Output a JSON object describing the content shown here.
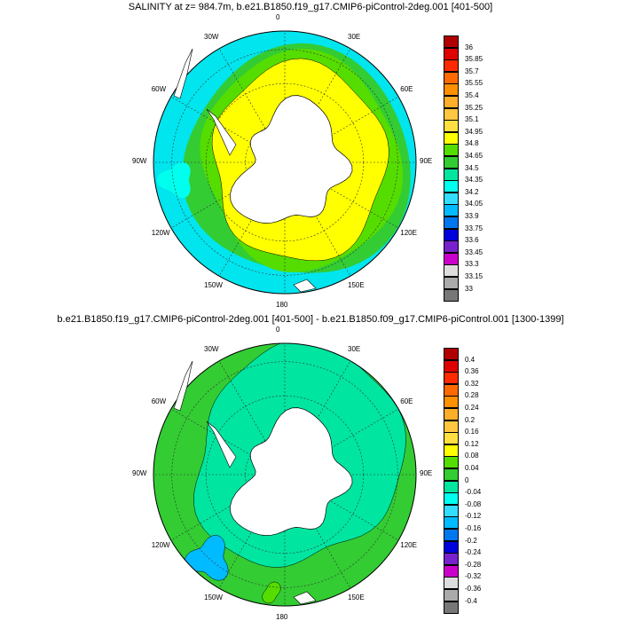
{
  "panels": [
    {
      "title": "SALINITY at z= 984.7m, b.e21.B1850.f19_g17.CMIP6-piControl-2deg.001 [401-500]",
      "lon_labels": [
        "0",
        "30E",
        "60E",
        "90E",
        "120E",
        "150E",
        "180",
        "150W",
        "120W",
        "90W",
        "60W",
        "30W"
      ],
      "colorbar": {
        "labels": [
          "36",
          "35.85",
          "35.7",
          "35.55",
          "35.4",
          "35.25",
          "35.1",
          "34.95",
          "34.8",
          "34.65",
          "34.5",
          "34.35",
          "34.2",
          "34.05",
          "33.9",
          "33.75",
          "33.6",
          "33.45",
          "33.3",
          "33.15",
          "33"
        ],
        "colors": [
          "#b10000",
          "#e00000",
          "#ff2a00",
          "#ff6a00",
          "#ff9000",
          "#ffae2a",
          "#ffc640",
          "#ffe040",
          "#ffff00",
          "#55dd00",
          "#33cc33",
          "#00e5a0",
          "#00ffee",
          "#33ddff",
          "#00bbff",
          "#0077ee",
          "#0000dd",
          "#7722cc",
          "#cc00cc",
          "#dddddd",
          "#aaaaaa",
          "#777777"
        ]
      }
    },
    {
      "title": "b.e21.B1850.f19_g17.CMIP6-piControl-2deg.001 [401-500] - b.e21.B1850.f09_g17.CMIP6-piControl.001 [1300-1399]",
      "lon_labels": [
        "0",
        "30E",
        "60E",
        "90E",
        "120E",
        "150E",
        "180",
        "150W",
        "120W",
        "90W",
        "60W",
        "30W"
      ],
      "colorbar": {
        "labels": [
          "0.4",
          "0.36",
          "0.32",
          "0.28",
          "0.24",
          "0.2",
          "0.16",
          "0.12",
          "0.08",
          "0.04",
          "0",
          "-0.04",
          "-0.08",
          "-0.12",
          "-0.16",
          "-0.2",
          "-0.24",
          "-0.28",
          "-0.32",
          "-0.36",
          "-0.4"
        ],
        "colors": [
          "#b10000",
          "#e00000",
          "#ff2a00",
          "#ff6a00",
          "#ff9000",
          "#ffae2a",
          "#ffc640",
          "#ffe040",
          "#ffff00",
          "#55dd00",
          "#33cc33",
          "#00e5a0",
          "#00ffee",
          "#33ddff",
          "#00bbff",
          "#0077ee",
          "#0000dd",
          "#7722cc",
          "#cc00cc",
          "#dddddd",
          "#aaaaaa",
          "#777777"
        ]
      }
    }
  ]
}
